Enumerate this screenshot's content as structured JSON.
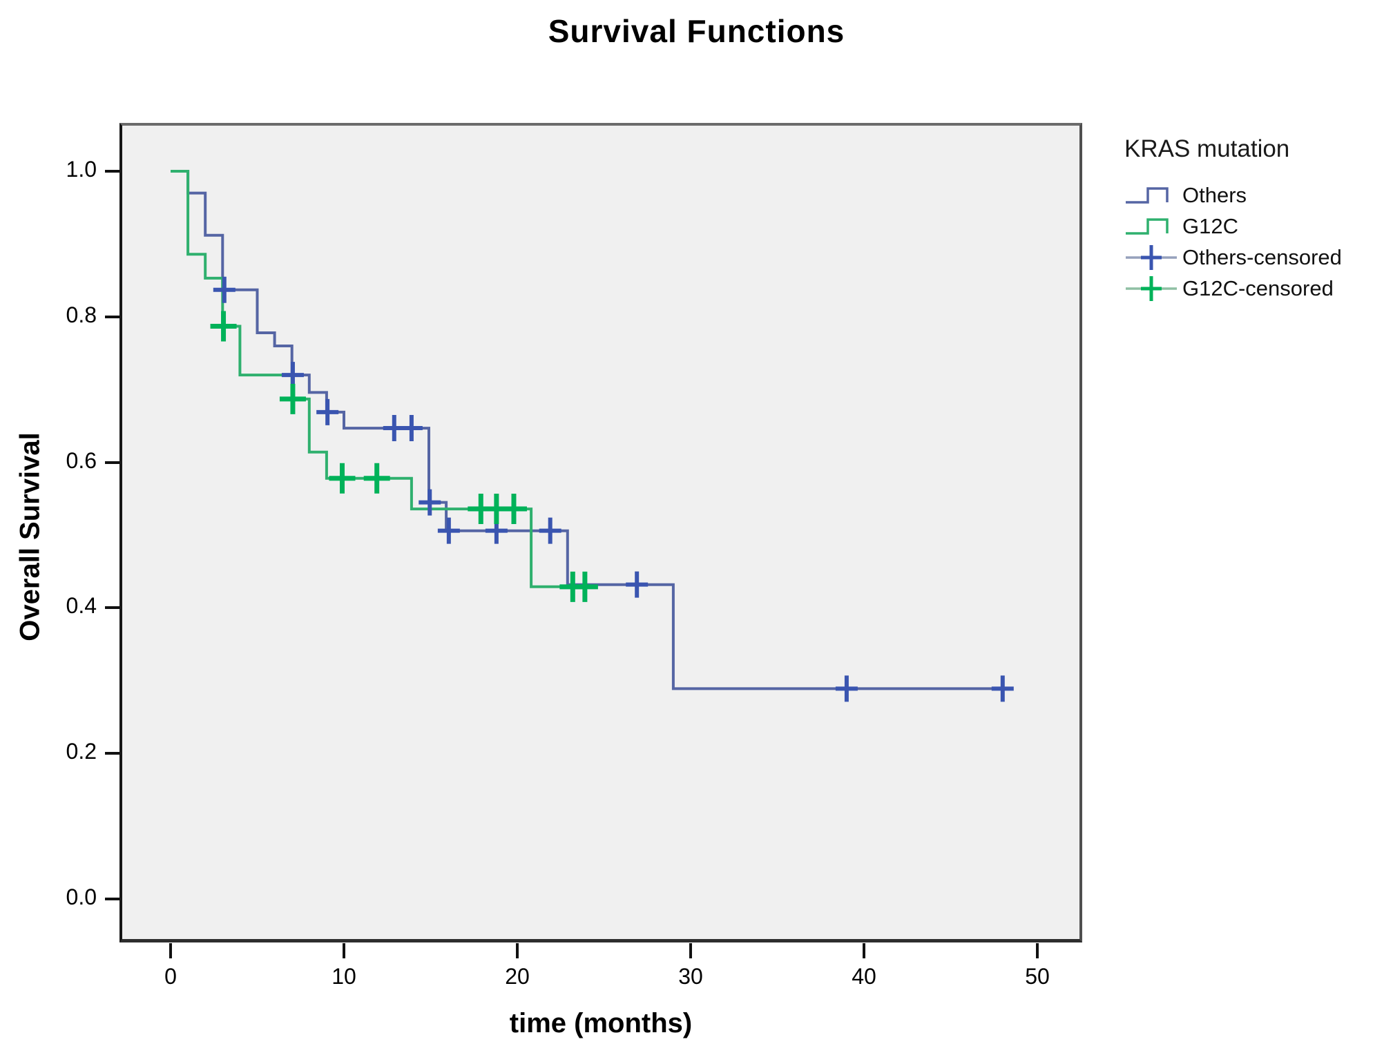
{
  "title": "Survival Functions",
  "y_axis": {
    "label": "Overall Survival",
    "tick_labels": [
      "1.0",
      "0.8",
      "0.6",
      "0.4",
      "0.2",
      "0.0"
    ],
    "tick_values": [
      1.0,
      0.8,
      0.6,
      0.4,
      0.2,
      0.0
    ]
  },
  "x_axis": {
    "label": "time (months)",
    "tick_labels": [
      "0",
      "10",
      "20",
      "30",
      "40",
      "50"
    ],
    "tick_values": [
      0,
      10,
      20,
      30,
      40,
      50
    ]
  },
  "legend": {
    "title": "KRAS mutation",
    "entries": [
      {
        "label": "Others",
        "type": "step",
        "color": "#5565a4"
      },
      {
        "label": "G12C",
        "type": "step",
        "color": "#2fb06e"
      },
      {
        "label": "Others-censored",
        "type": "censor",
        "line_color": "#96a1bc",
        "cross_color": "#3a55b0"
      },
      {
        "label": "G12C-censored",
        "type": "censor",
        "line_color": "#8fc0a4",
        "cross_color": "#00b259"
      }
    ]
  },
  "chart_data": {
    "type": "line",
    "subtype": "kaplan-meier-step",
    "title": "Survival Functions",
    "xlabel": "time (months)",
    "ylabel": "Overall Survival",
    "xlim": [
      -2.8,
      52.4
    ],
    "ylim": [
      -0.055,
      1.063
    ],
    "x_ticks": [
      0,
      10,
      20,
      30,
      40,
      50
    ],
    "y_ticks": [
      0.0,
      0.2,
      0.4,
      0.6,
      0.8,
      1.0
    ],
    "grid": false,
    "legend_position": "right",
    "plot_background": "#f0f0f0",
    "series": [
      {
        "name": "Others",
        "color": "#5565a4",
        "censor_color": "#3a55b0",
        "steps": [
          [
            0,
            1.0
          ],
          [
            1,
            0.97
          ],
          [
            2,
            0.912
          ],
          [
            3,
            0.837
          ],
          [
            5,
            0.778
          ],
          [
            6,
            0.76
          ],
          [
            7,
            0.72
          ],
          [
            8,
            0.696
          ],
          [
            9,
            0.669
          ],
          [
            10,
            0.647
          ],
          [
            14.9,
            0.545
          ],
          [
            15.9,
            0.506
          ],
          [
            22.9,
            0.432
          ],
          [
            29,
            0.289
          ]
        ],
        "end_time": 48.2,
        "censored": [
          [
            3.1,
            0.837
          ],
          [
            7.05,
            0.72
          ],
          [
            9.05,
            0.669
          ],
          [
            12.9,
            0.647
          ],
          [
            13.9,
            0.647
          ],
          [
            14.95,
            0.545
          ],
          [
            16.05,
            0.506
          ],
          [
            18.8,
            0.506
          ],
          [
            21.9,
            0.506
          ],
          [
            26.9,
            0.432
          ],
          [
            39,
            0.289
          ],
          [
            48,
            0.289
          ]
        ]
      },
      {
        "name": "G12C",
        "color": "#2fb06e",
        "censor_color": "#00b259",
        "steps": [
          [
            0,
            1.0
          ],
          [
            1,
            0.886
          ],
          [
            2,
            0.853
          ],
          [
            3,
            0.787
          ],
          [
            4,
            0.72
          ],
          [
            7,
            0.687
          ],
          [
            8,
            0.614
          ],
          [
            9,
            0.578
          ],
          [
            13.9,
            0.536
          ],
          [
            20.8,
            0.429
          ]
        ],
        "end_time": 24.3,
        "censored": [
          [
            3.05,
            0.787
          ],
          [
            7.05,
            0.687
          ],
          [
            9.9,
            0.578
          ],
          [
            11.9,
            0.578
          ],
          [
            17.9,
            0.536
          ],
          [
            18.8,
            0.536
          ],
          [
            19.8,
            0.536
          ],
          [
            23.2,
            0.429
          ],
          [
            23.9,
            0.429
          ]
        ]
      }
    ]
  }
}
